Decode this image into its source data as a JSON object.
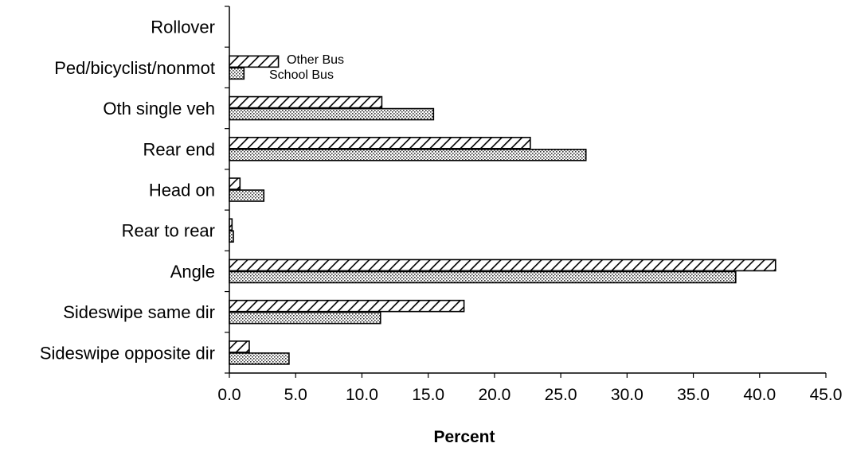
{
  "chart_data": {
    "type": "bar",
    "orientation": "horizontal",
    "categories": [
      "Rollover",
      "Ped/bicyclist/nonmot",
      "Oth single veh",
      "Rear end",
      "Head on",
      "Rear to rear",
      "Angle",
      "Sideswipe same dir",
      "Sideswipe opposite dir"
    ],
    "series": [
      {
        "name": "Other Bus",
        "pattern": "diagonal-hatch",
        "values": [
          0.0,
          3.7,
          11.5,
          22.7,
          0.8,
          0.2,
          41.2,
          17.7,
          1.5
        ]
      },
      {
        "name": "School Bus",
        "pattern": "dotted",
        "values": [
          0.0,
          1.1,
          15.4,
          26.9,
          2.6,
          0.3,
          38.2,
          11.4,
          4.5
        ]
      }
    ],
    "xlabel": "Percent",
    "ylabel": "",
    "title": "",
    "xlim": [
      0,
      45
    ],
    "xticks": [
      "0.0",
      "5.0",
      "10.0",
      "15.0",
      "20.0",
      "25.0",
      "30.0",
      "35.0",
      "40.0",
      "45.0"
    ],
    "grid": false,
    "legend": "inline-labels-near-top-bars"
  }
}
